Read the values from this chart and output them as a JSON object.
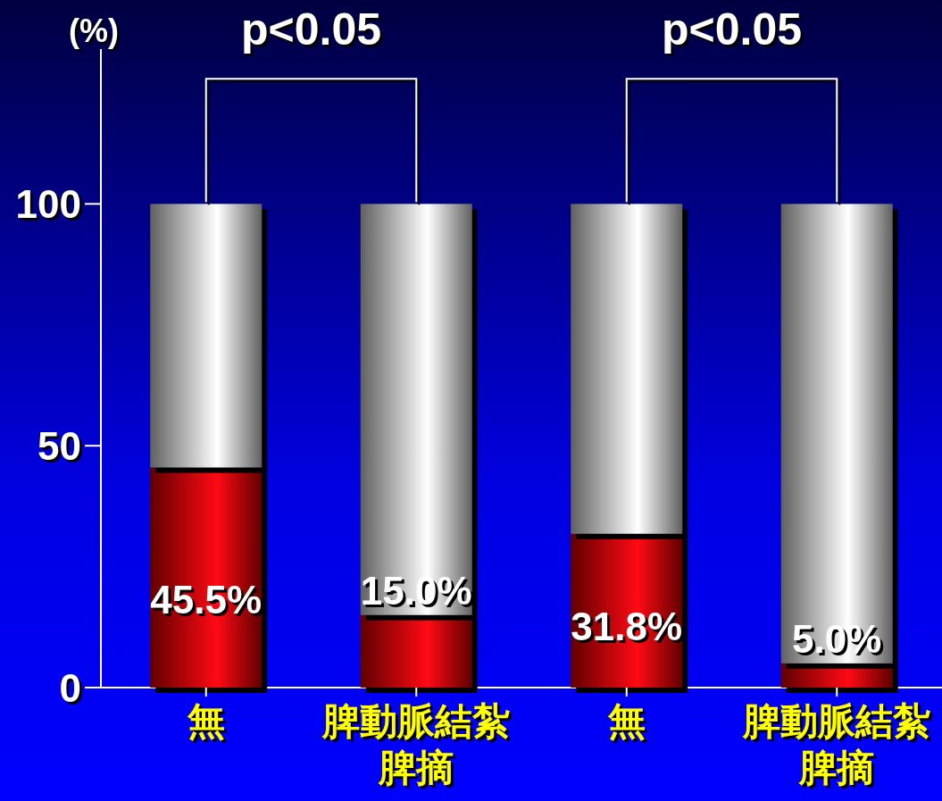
{
  "chart_data": {
    "type": "bar",
    "stacked": true,
    "ylabel": "(%)",
    "categories": [
      "無",
      "脾動脈結紮脾摘",
      "無",
      "脾動脈結紮脾摘"
    ],
    "series": [
      {
        "color": "#ff0a14",
        "values": [
          45.5,
          15.0,
          31.8,
          5.0
        ],
        "value_labels": [
          "45.5%",
          "15.0%",
          "31.8%",
          "5.0%"
        ]
      },
      {
        "color": "#ffffff",
        "values": [
          54.5,
          85.0,
          68.2,
          95.0
        ]
      }
    ],
    "ylim": [
      0,
      132
    ],
    "yticks": [
      0,
      50,
      100
    ],
    "annotations": [
      "p<0.05",
      "p<0.05"
    ]
  }
}
